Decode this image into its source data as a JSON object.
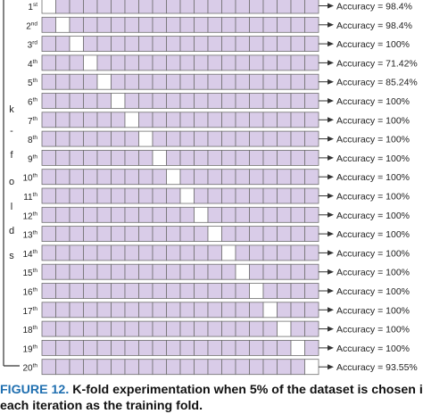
{
  "axis_label_letters": [
    "k",
    "-",
    "f",
    "o",
    "l",
    "d",
    "s"
  ],
  "folds": [
    {
      "num": "1",
      "suffix": "st",
      "accuracy": "Accuracy = 98.4%"
    },
    {
      "num": "2",
      "suffix": "nd",
      "accuracy": "Accuracy = 98.4%"
    },
    {
      "num": "3",
      "suffix": "rd",
      "accuracy": "Accuracy = 100%"
    },
    {
      "num": "4",
      "suffix": "th",
      "accuracy": "Accuracy = 71.42%"
    },
    {
      "num": "5",
      "suffix": "th",
      "accuracy": "Accuracy = 85.24%"
    },
    {
      "num": "6",
      "suffix": "th",
      "accuracy": "Accuracy = 100%"
    },
    {
      "num": "7",
      "suffix": "th",
      "accuracy": "Accuracy = 100%"
    },
    {
      "num": "8",
      "suffix": "th",
      "accuracy": "Accuracy = 100%"
    },
    {
      "num": "9",
      "suffix": "th",
      "accuracy": "Accuracy = 100%"
    },
    {
      "num": "10",
      "suffix": "th",
      "accuracy": "Accuracy = 100%"
    },
    {
      "num": "11",
      "suffix": "th",
      "accuracy": "Accuracy = 100%"
    },
    {
      "num": "12",
      "suffix": "th",
      "accuracy": "Accuracy = 100%"
    },
    {
      "num": "13",
      "suffix": "th",
      "accuracy": "Accuracy = 100%"
    },
    {
      "num": "14",
      "suffix": "th",
      "accuracy": "Accuracy = 100%"
    },
    {
      "num": "15",
      "suffix": "th",
      "accuracy": "Accuracy = 100%"
    },
    {
      "num": "16",
      "suffix": "th",
      "accuracy": "Accuracy = 100%"
    },
    {
      "num": "17",
      "suffix": "th",
      "accuracy": "Accuracy = 100%"
    },
    {
      "num": "18",
      "suffix": "th",
      "accuracy": "Accuracy = 100%"
    },
    {
      "num": "19",
      "suffix": "th",
      "accuracy": "Accuracy = 100%"
    },
    {
      "num": "20",
      "suffix": "th",
      "accuracy": "Accuracy = 93.55%"
    }
  ],
  "segments_per_row": 20,
  "caption": {
    "figure": "FIGURE 12.",
    "line1": "K-fold experimentation when 5% of the dataset is chosen in",
    "line2": "each iteration as the training fold."
  },
  "colors": {
    "segment_fill": "#d9cce8",
    "segment_border": "#6f6f6f",
    "training_fold_fill": "#ffffff",
    "caption_figure": "#1f6fb0"
  }
}
